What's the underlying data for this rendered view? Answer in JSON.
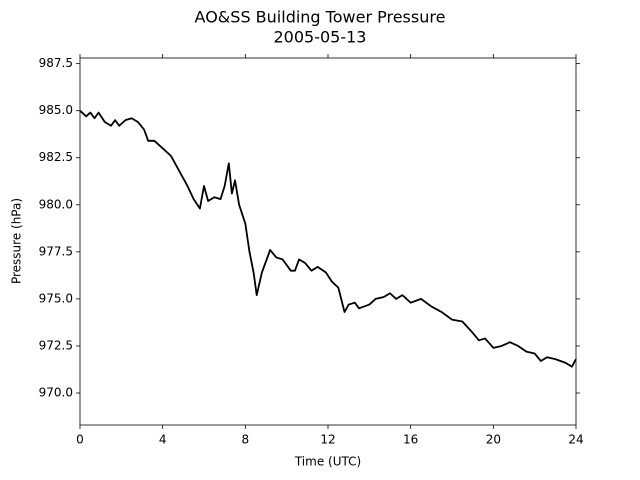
{
  "chart_data": {
    "type": "line",
    "title": "AO&SS Building Tower Pressure",
    "subtitle": "2005-05-13",
    "x_label": "Time (UTC)",
    "y_label": "Pressure (hPa)",
    "xlim": [
      0,
      24
    ],
    "xticks": [
      0,
      4,
      8,
      12,
      16,
      20,
      24
    ],
    "ylim": [
      968.3,
      987.8
    ],
    "yticks": [
      {
        "value": 970,
        "label": "970.0"
      },
      972.5,
      {
        "value": 975,
        "label": "975.0"
      },
      977.5,
      {
        "value": 980,
        "label": "980.0"
      },
      982.5,
      {
        "value": 985,
        "label": "985.0"
      },
      987.5
    ],
    "x": [
      0,
      0.3,
      0.5,
      0.7,
      0.9,
      1.2,
      1.5,
      1.7,
      1.9,
      2.2,
      2.5,
      2.8,
      3.1,
      3.3,
      3.6,
      4.0,
      4.4,
      4.8,
      5.2,
      5.5,
      5.8,
      6.0,
      6.2,
      6.5,
      6.8,
      7.0,
      7.2,
      7.35,
      7.5,
      7.7,
      8.0,
      8.2,
      8.4,
      8.55,
      8.8,
      9.0,
      9.2,
      9.5,
      9.8,
      10.2,
      10.4,
      10.6,
      10.9,
      11.2,
      11.5,
      11.9,
      12.2,
      12.5,
      12.8,
      13.0,
      13.3,
      13.5,
      14.0,
      14.3,
      14.7,
      15.0,
      15.3,
      15.6,
      16.0,
      16.5,
      17.0,
      17.5,
      18.0,
      18.5,
      19.0,
      19.3,
      19.6,
      20.0,
      20.4,
      20.8,
      21.2,
      21.6,
      22.0,
      22.3,
      22.6,
      23.0,
      23.5,
      23.8,
      24.0
    ],
    "series": [
      {
        "name": "Pressure",
        "color": "#000000",
        "values": [
          985.0,
          984.7,
          984.9,
          984.6,
          984.9,
          984.4,
          984.2,
          984.5,
          984.2,
          984.5,
          984.6,
          984.4,
          984.0,
          983.4,
          983.4,
          983.0,
          982.6,
          981.8,
          981.0,
          980.3,
          979.8,
          981.0,
          980.2,
          980.4,
          980.3,
          981.0,
          982.2,
          980.6,
          981.3,
          980.0,
          979.0,
          977.5,
          976.4,
          975.2,
          976.4,
          977.0,
          977.6,
          977.2,
          977.1,
          976.5,
          976.5,
          977.1,
          976.9,
          976.5,
          976.7,
          976.4,
          975.9,
          975.6,
          974.3,
          974.7,
          974.8,
          974.5,
          974.7,
          975.0,
          975.1,
          975.3,
          975.0,
          975.2,
          974.8,
          975.0,
          974.6,
          974.3,
          973.9,
          973.8,
          973.2,
          972.8,
          972.9,
          972.4,
          972.5,
          972.7,
          972.5,
          972.2,
          972.1,
          971.7,
          971.9,
          971.8,
          971.6,
          971.4,
          971.8
        ]
      }
    ]
  }
}
